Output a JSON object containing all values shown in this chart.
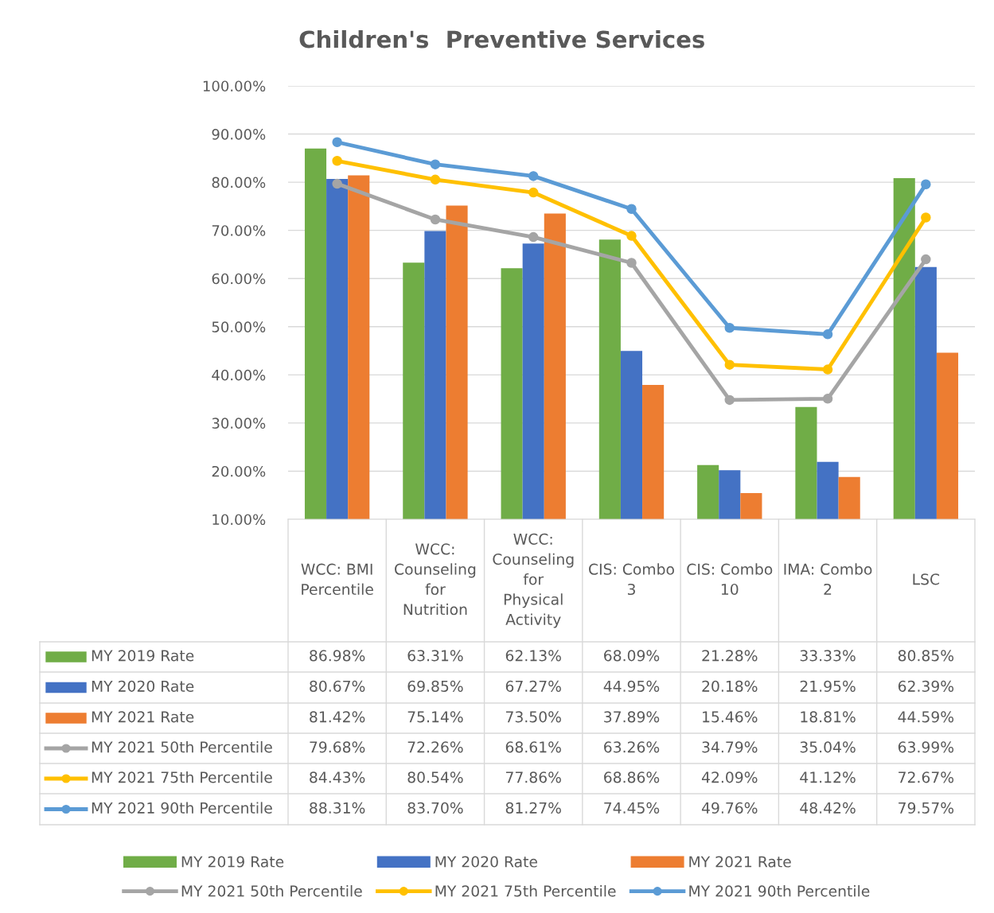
{
  "chart_data": {
    "type": "bar",
    "title": "Children's  Preventive Services",
    "categories": [
      "WCC: BMI Percentile",
      "WCC: Counseling for Nutrition",
      "WCC: Counseling for Physical Activity",
      "CIS: Combo 3",
      "CIS: Combo 10",
      "IMA: Combo 2",
      "LSC"
    ],
    "series": [
      {
        "name": "MY 2019 Rate",
        "color": "#70ad47",
        "values": [
          86.98,
          63.31,
          62.13,
          68.09,
          21.28,
          33.33,
          80.85
        ],
        "value_labels": [
          "86.98%",
          "63.31%",
          "62.13%",
          "68.09%",
          "21.28%",
          "33.33%",
          "80.85%"
        ]
      },
      {
        "name": "MY 2020 Rate",
        "color": "#4472c4",
        "values": [
          80.67,
          69.85,
          67.27,
          44.95,
          20.18,
          21.95,
          62.39
        ],
        "value_labels": [
          "80.67%",
          "69.85%",
          "67.27%",
          "44.95%",
          "20.18%",
          "21.95%",
          "62.39%"
        ]
      },
      {
        "name": "MY 2021 Rate",
        "color": "#ed7d31",
        "values": [
          81.42,
          75.14,
          73.5,
          37.89,
          15.46,
          18.81,
          44.59
        ],
        "value_labels": [
          "81.42%",
          "75.14%",
          "73.50%",
          "37.89%",
          "15.46%",
          "18.81%",
          "44.59%"
        ]
      },
      {
        "name": "MY 2021 50th Percentile",
        "type": "line",
        "marker": "circle",
        "color": "#a5a5a5",
        "values": [
          79.68,
          72.26,
          68.61,
          63.26,
          34.79,
          35.04,
          63.99
        ],
        "value_labels": [
          "79.68%",
          "72.26%",
          "68.61%",
          "63.26%",
          "34.79%",
          "35.04%",
          "63.99%"
        ]
      },
      {
        "name": "MY 2021 75th Percentile",
        "type": "line",
        "marker": "circle",
        "color": "#ffc000",
        "values": [
          84.43,
          80.54,
          77.86,
          68.86,
          42.09,
          41.12,
          72.67
        ],
        "value_labels": [
          "84.43%",
          "80.54%",
          "77.86%",
          "68.86%",
          "42.09%",
          "41.12%",
          "72.67%"
        ]
      },
      {
        "name": "MY 2021 90th Percentile",
        "type": "line",
        "marker": "circle",
        "color": "#5b9bd5",
        "values": [
          88.31,
          83.7,
          81.27,
          74.45,
          49.76,
          48.42,
          79.57
        ],
        "value_labels": [
          "88.31%",
          "83.70%",
          "81.27%",
          "74.45%",
          "49.76%",
          "48.42%",
          "79.57%"
        ]
      }
    ],
    "ylim": [
      10,
      100
    ],
    "yticks": [
      {
        "value": 10,
        "label": "10.00%"
      },
      {
        "value": 20,
        "label": "20.00%"
      },
      {
        "value": 30,
        "label": "30.00%"
      },
      {
        "value": 40,
        "label": "40.00%"
      },
      {
        "value": 50,
        "label": "50.00%"
      },
      {
        "value": 60,
        "label": "60.00%"
      },
      {
        "value": 70,
        "label": "70.00%"
      },
      {
        "value": 80,
        "label": "80.00%"
      },
      {
        "value": 90,
        "label": "90.00%"
      },
      {
        "value": 100,
        "label": "100.00%"
      }
    ],
    "grid": "y",
    "legend": "bottom"
  }
}
